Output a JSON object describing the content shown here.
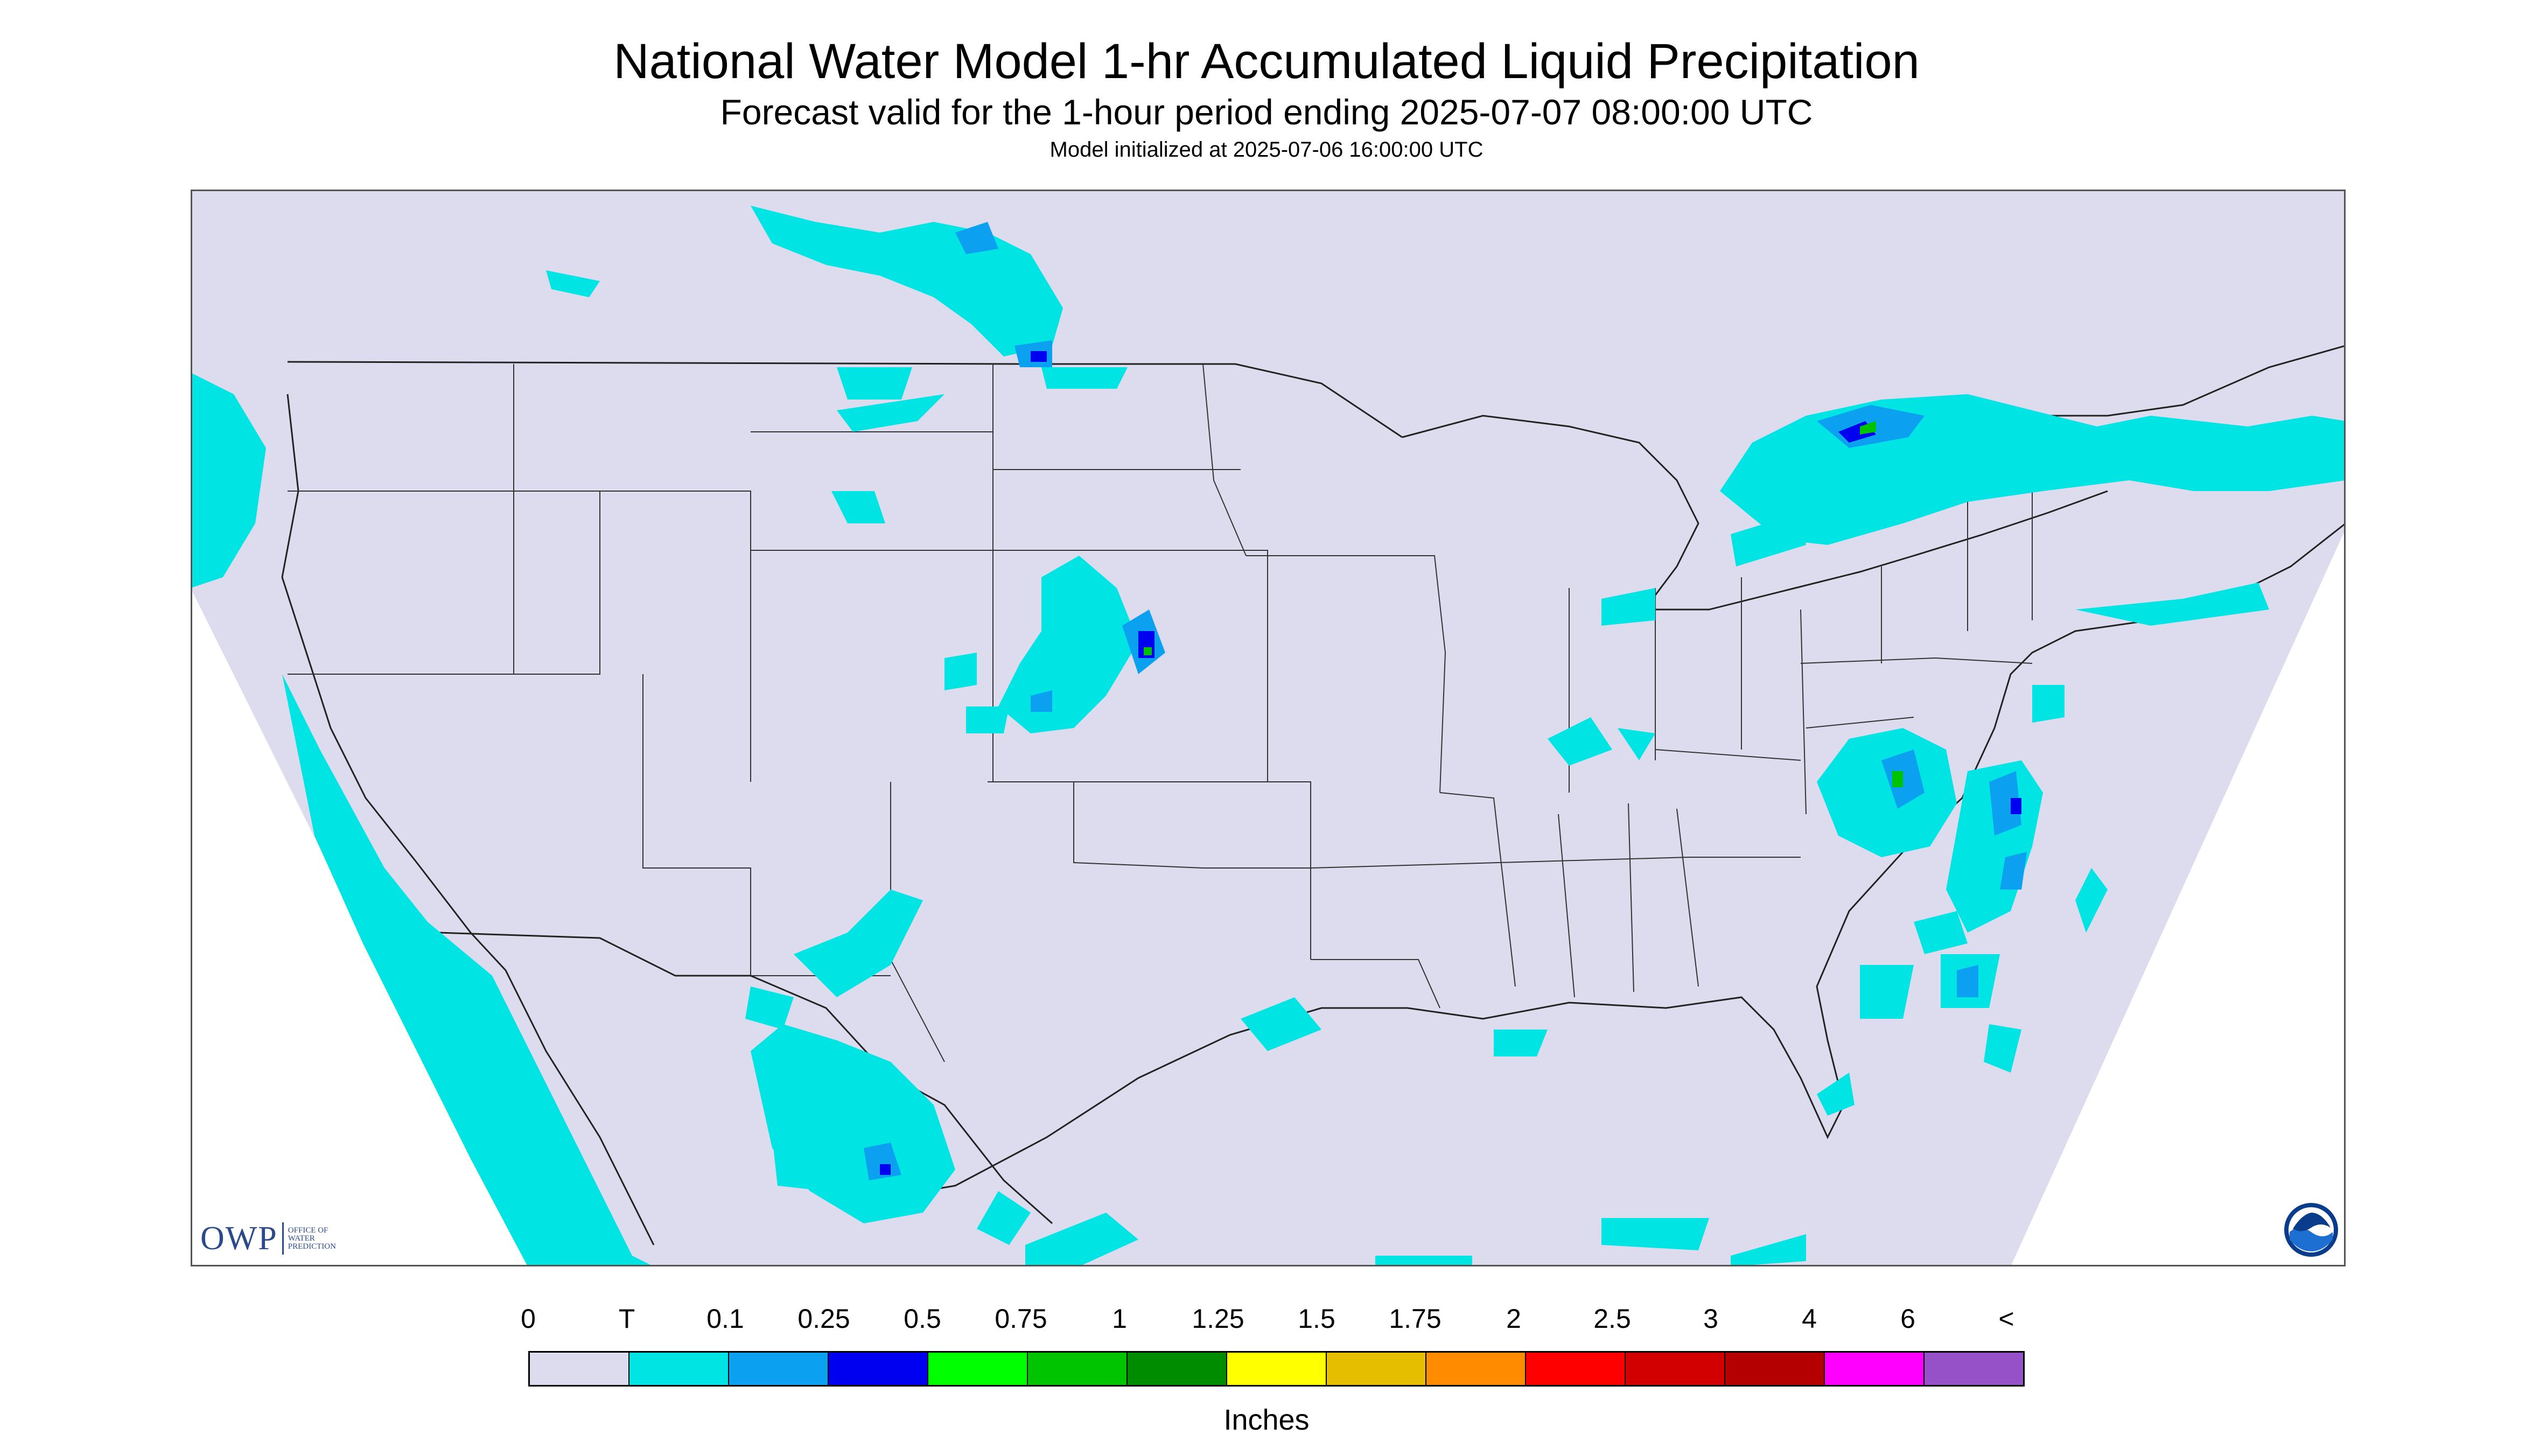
{
  "title": "National Water Model 1-hr Accumulated Liquid Precipitation",
  "subtitle": "Forecast valid for the 1-hour period ending 2025-07-07 08:00:00 UTC",
  "init_text": "Model initialized at 2025-07-06 16:00:00 UTC",
  "logos": {
    "owp_big": "OWP",
    "owp_small": [
      "OFFICE OF",
      "WATER",
      "PREDICTION"
    ],
    "noaa": "NOAA"
  },
  "legend": {
    "units": "Inches",
    "labels": [
      "0",
      "T",
      "0.1",
      "0.25",
      "0.5",
      "0.75",
      "1",
      "1.25",
      "1.5",
      "1.75",
      "2",
      "2.5",
      "3",
      "4",
      "6",
      "<"
    ],
    "colors": [
      "#dcdcee",
      "#00e4e4",
      "#0ca0f0",
      "#0000f0",
      "#00ff00",
      "#00c400",
      "#008c00",
      "#ffff00",
      "#e6be00",
      "#ff8c00",
      "#ff0000",
      "#d20000",
      "#b40000",
      "#ff00ff",
      "#9650c8"
    ]
  },
  "colors": {
    "no_data": "#ffffff",
    "land": "#dcdcee",
    "trace": "#00e4e4",
    "light": "#0ca0f0",
    "moderate": "#0000f0",
    "heavy": "#00c400",
    "boundaries": "#222222"
  }
}
